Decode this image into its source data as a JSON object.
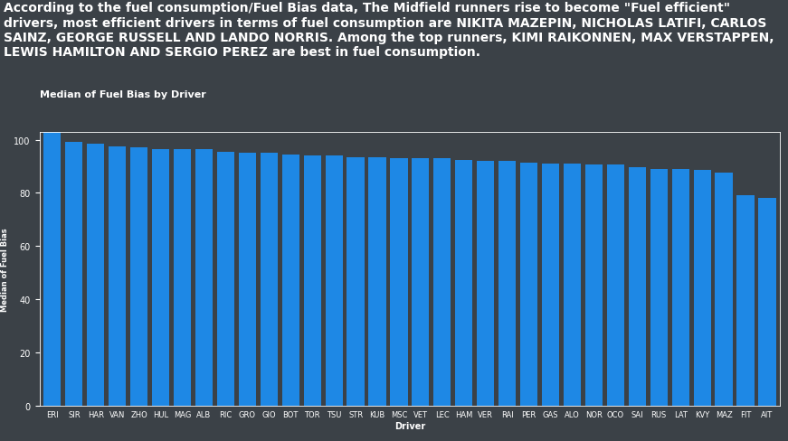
{
  "chart_data": {
    "type": "bar",
    "annotation": "According to the fuel consumption/Fuel Bias data, The Midfield runners rise to become \"Fuel efficient\" drivers, most efficient drivers in terms of fuel consumption are NIKITA MAZEPIN, NICHOLAS LATIFI, CARLOS SAINZ, GEORGE RUSSELL AND LANDO NORRIS. Among the top runners, KIMI RAIKONNEN, MAX VERSTAPPEN, LEWIS HAMILTON AND SERGIO PEREZ are best in fuel consumption.",
    "title": "Median of Fuel Bias by Driver",
    "x_label": "Driver",
    "y_label": "Median of Fuel Bias",
    "categories": [
      "ERI",
      "SIR",
      "HAR",
      "VAN",
      "ZHO",
      "HUL",
      "MAG",
      "ALB",
      "RIC",
      "GRO",
      "GIO",
      "BOT",
      "TOR",
      "TSU",
      "STR",
      "KUB",
      "MSC",
      "VET",
      "LEC",
      "HAM",
      "VER",
      "RAI",
      "PER",
      "GAS",
      "ALO",
      "NOR",
      "OCO",
      "SAI",
      "RUS",
      "LAT",
      "KVY",
      "MAZ",
      "FIT",
      "AIT"
    ],
    "values": [
      103,
      99,
      98.5,
      97.5,
      97,
      96.5,
      96.5,
      96.5,
      95.5,
      95,
      95,
      94.5,
      94,
      94,
      93.5,
      93.5,
      93,
      93,
      93,
      92.5,
      92,
      92,
      91.5,
      91,
      91,
      90.5,
      90.5,
      89.5,
      89,
      89,
      88.5,
      87.5,
      79,
      78
    ],
    "color": "#1e88e5",
    "ylim": [
      0,
      103
    ],
    "yticks": [
      0,
      20,
      40,
      60,
      80,
      100
    ],
    "grid": false
  }
}
